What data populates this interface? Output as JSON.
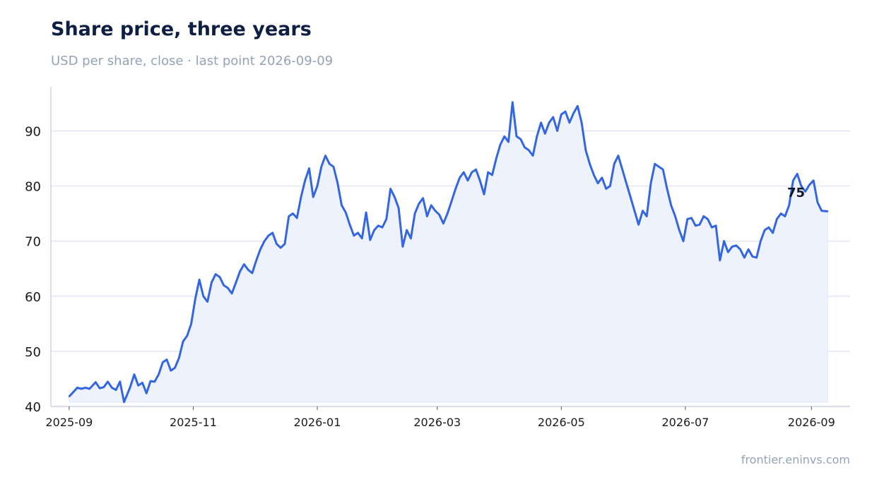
{
  "header": {
    "title": "Share price, three years",
    "subtitle": "USD per share, close · last point 2026-09-09"
  },
  "footer": {
    "source": "frontier.eninvs.com"
  },
  "colors": {
    "line": "#3366e0",
    "area": "#eef2fc",
    "grid": "#e3e7f2",
    "axis": "#d0d5e0"
  },
  "chart_data": {
    "type": "area",
    "title": "Share price, three years",
    "subtitle": "USD per share, close · last point 2026-09-09",
    "xlabel": "",
    "ylabel": "",
    "ylim": [
      40,
      98
    ],
    "xlim": [
      "2025-08-23",
      "2026-09-20"
    ],
    "yticks": [
      40,
      50,
      60,
      70,
      80,
      90
    ],
    "xticks": [
      "2025-09",
      "2025-11",
      "2026-01",
      "2026-03",
      "2026-05",
      "2026-07",
      "2026-09"
    ],
    "grid": "horizontal",
    "end_label": "75",
    "x": [
      "2025-09-01",
      "2025-09-03",
      "2025-09-05",
      "2025-09-07",
      "2025-09-09",
      "2025-09-11",
      "2025-09-14",
      "2025-09-16",
      "2025-09-18",
      "2025-09-20",
      "2025-09-22",
      "2025-09-24",
      "2025-09-26",
      "2025-09-28",
      "2025-10-01",
      "2025-10-03",
      "2025-10-05",
      "2025-10-07",
      "2025-10-09",
      "2025-10-11",
      "2025-10-13",
      "2025-10-15",
      "2025-10-17",
      "2025-10-19",
      "2025-10-21",
      "2025-10-23",
      "2025-10-25",
      "2025-10-27",
      "2025-10-29",
      "2025-10-31",
      "2025-11-02",
      "2025-11-04",
      "2025-11-06",
      "2025-11-08",
      "2025-11-10",
      "2025-11-12",
      "2025-11-14",
      "2025-11-16",
      "2025-11-18",
      "2025-11-20",
      "2025-11-22",
      "2025-11-24",
      "2025-11-26",
      "2025-11-28",
      "2025-11-30",
      "2025-12-02",
      "2025-12-04",
      "2025-12-06",
      "2025-12-08",
      "2025-12-10",
      "2025-12-12",
      "2025-12-14",
      "2025-12-16",
      "2025-12-18",
      "2025-12-20",
      "2025-12-22",
      "2025-12-24",
      "2025-12-26",
      "2025-12-28",
      "2025-12-30",
      "2026-01-01",
      "2026-01-03",
      "2026-01-05",
      "2026-01-07",
      "2026-01-09",
      "2026-01-11",
      "2026-01-13",
      "2026-01-15",
      "2026-01-17",
      "2026-01-19",
      "2026-01-21",
      "2026-01-23",
      "2026-01-25",
      "2026-01-27",
      "2026-01-29",
      "2026-01-31",
      "2026-02-02",
      "2026-02-04",
      "2026-02-06",
      "2026-02-08",
      "2026-02-10",
      "2026-02-12",
      "2026-02-14",
      "2026-02-16",
      "2026-02-18",
      "2026-02-20",
      "2026-02-22",
      "2026-02-24",
      "2026-02-26",
      "2026-02-28",
      "2026-03-02",
      "2026-03-04",
      "2026-03-06",
      "2026-03-08",
      "2026-03-10",
      "2026-03-12",
      "2026-03-14",
      "2026-03-16",
      "2026-03-18",
      "2026-03-20",
      "2026-03-22",
      "2026-03-24",
      "2026-03-26",
      "2026-03-28",
      "2026-03-30",
      "2026-04-01",
      "2026-04-03",
      "2026-04-05",
      "2026-04-07",
      "2026-04-09",
      "2026-04-11",
      "2026-04-13",
      "2026-04-15",
      "2026-04-17",
      "2026-04-19",
      "2026-04-21",
      "2026-04-23",
      "2026-04-25",
      "2026-04-27",
      "2026-04-29",
      "2026-05-01",
      "2026-05-03",
      "2026-05-05",
      "2026-05-07",
      "2026-05-09",
      "2026-05-11",
      "2026-05-13",
      "2026-05-15",
      "2026-05-17",
      "2026-05-19",
      "2026-05-21",
      "2026-05-23",
      "2026-05-25",
      "2026-05-27",
      "2026-05-29",
      "2026-05-31",
      "2026-06-02",
      "2026-06-04",
      "2026-06-06",
      "2026-06-08",
      "2026-06-10",
      "2026-06-12",
      "2026-06-14",
      "2026-06-16",
      "2026-06-18",
      "2026-06-20",
      "2026-06-22",
      "2026-06-24",
      "2026-06-26",
      "2026-06-28",
      "2026-06-30",
      "2026-07-02",
      "2026-07-04",
      "2026-07-06",
      "2026-07-08",
      "2026-07-10",
      "2026-07-12",
      "2026-07-14",
      "2026-07-16",
      "2026-07-18",
      "2026-07-20",
      "2026-07-22",
      "2026-07-24",
      "2026-07-26",
      "2026-07-28",
      "2026-07-30",
      "2026-08-01",
      "2026-08-03",
      "2026-08-05",
      "2026-08-07",
      "2026-08-09",
      "2026-08-11",
      "2026-08-13",
      "2026-08-15",
      "2026-08-17",
      "2026-08-19",
      "2026-08-21",
      "2026-08-23",
      "2026-08-25",
      "2026-08-27",
      "2026-08-29",
      "2026-08-31",
      "2026-09-02",
      "2026-09-04",
      "2026-09-06",
      "2026-09-09"
    ],
    "series": [
      {
        "values": [
          41.8,
          42.6,
          43.4,
          43.2,
          43.4,
          43.2,
          44.4,
          43.3,
          43.5,
          44.5,
          43.4,
          43.0,
          44.5,
          40.8,
          43.5,
          45.8,
          43.8,
          44.3,
          42.4,
          44.6,
          44.5,
          45.8,
          48.0,
          48.5,
          46.5,
          47.0,
          48.8,
          51.8,
          52.8,
          55.0,
          59.5,
          63.0,
          60.0,
          59.0,
          62.5,
          64.0,
          63.5,
          62.0,
          61.5,
          60.5,
          62.5,
          64.5,
          65.8,
          64.8,
          64.2,
          66.5,
          68.5,
          70.0,
          71.0,
          71.5,
          69.5,
          68.8,
          69.5,
          74.5,
          75.0,
          74.2,
          78.0,
          81.0,
          83.2,
          78.0,
          80.0,
          83.5,
          85.5,
          84.0,
          83.5,
          80.5,
          76.5,
          75.2,
          73.0,
          71.0,
          71.5,
          70.5,
          75.2,
          70.2,
          72.0,
          72.8,
          72.5,
          74.0,
          79.5,
          78.0,
          76.0,
          69.0,
          72.0,
          70.5,
          75.0,
          76.8,
          77.8,
          74.5,
          76.5,
          75.5,
          74.8,
          73.2,
          75.0,
          77.2,
          79.5,
          81.5,
          82.5,
          81.0,
          82.5,
          83.0,
          81.0,
          78.5,
          82.5,
          82.0,
          85.0,
          87.5,
          89.0,
          88.0,
          95.2,
          89.0,
          88.5,
          87.0,
          86.5,
          85.5,
          89.0,
          91.5,
          89.5,
          91.5,
          92.5,
          90.0,
          93.0,
          93.5,
          91.5,
          93.2,
          94.5,
          91.5,
          86.5,
          84.0,
          82.0,
          80.5,
          81.5,
          79.5,
          80.0,
          84.0,
          85.5,
          83.0,
          80.5,
          78.0,
          75.5,
          73.0,
          75.5,
          74.5,
          80.5,
          84.0,
          83.5,
          83.0,
          79.5,
          76.5,
          74.5,
          72.0,
          70.0,
          74.0,
          74.2,
          72.8,
          73.0,
          74.5,
          74.0,
          72.5,
          72.8,
          66.5,
          70.0,
          68.0,
          69.0,
          69.2,
          68.5,
          67.0,
          68.5,
          67.2,
          67.0,
          70.0,
          72.0,
          72.5,
          71.5,
          74.0,
          75.0,
          74.5,
          76.5,
          81.0,
          82.2,
          80.0,
          79.0,
          80.2,
          81.0,
          77.0,
          75.5,
          75.4
        ]
      }
    ]
  }
}
